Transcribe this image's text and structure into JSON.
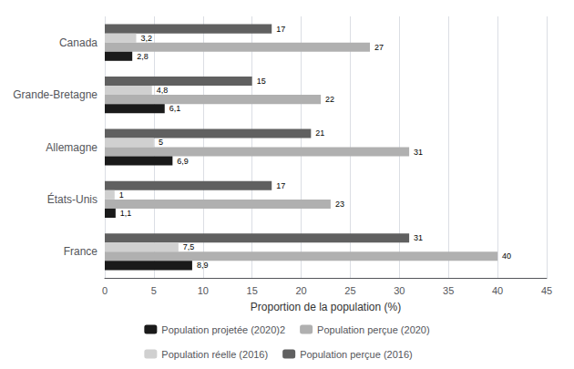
{
  "chart_data": {
    "type": "bar",
    "orientation": "horizontal",
    "xlabel": "Proportion de la population (%)",
    "categories": [
      "France",
      "États-Unis",
      "Allemagne",
      "Grande-Bretagne",
      "Canada"
    ],
    "series": [
      {
        "name": "Population projetée (2020)2",
        "color": "#1a1a1a",
        "values": [
          8.9,
          1.1,
          6.9,
          6.1,
          2.8
        ],
        "value_labels": [
          "8,9",
          "1,1",
          "6,9",
          "6,1",
          "2,8"
        ]
      },
      {
        "name": "Population perçue (2020)",
        "color": "#b0b0b0",
        "values": [
          40,
          23,
          31,
          22,
          27
        ],
        "value_labels": [
          "40",
          "23",
          "31",
          "22",
          "27"
        ]
      },
      {
        "name": "Population réelle (2016)",
        "color": "#d0d0d0",
        "values": [
          7.5,
          1.0,
          5.0,
          4.8,
          3.2
        ],
        "value_labels": [
          "7,5",
          "1",
          "5",
          "4,8",
          "3,2"
        ]
      },
      {
        "name": "Population perçue (2016)",
        "color": "#606060",
        "values": [
          31,
          17,
          21,
          15,
          17
        ],
        "value_labels": [
          "31",
          "17",
          "21",
          "15",
          "17"
        ]
      }
    ],
    "xlim": [
      0,
      45
    ],
    "xticks": [
      0,
      5,
      10,
      15,
      20,
      25,
      30,
      35,
      40,
      45
    ],
    "grid": true,
    "data_labels": true,
    "legend": "bottom"
  }
}
